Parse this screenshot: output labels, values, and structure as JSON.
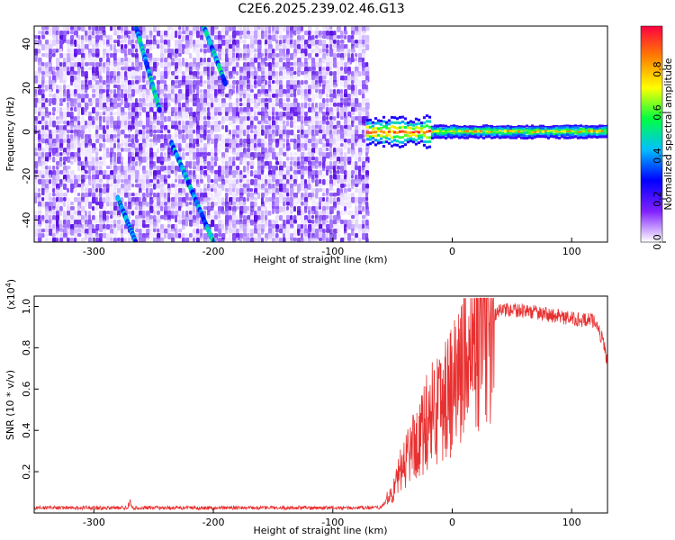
{
  "title": "C2E6.2025.239.02.46.G13",
  "chart_data": [
    {
      "type": "heatmap",
      "xlabel": "Height of straight line (km)",
      "ylabel": "Frequency (Hz)",
      "xlim": [
        -350,
        130
      ],
      "ylim": [
        -50,
        48
      ],
      "xticks": [
        -300,
        -200,
        -100,
        0,
        100
      ],
      "xtick_labels": [
        "-300",
        "-200",
        "-100",
        "0",
        "100"
      ],
      "yticks": [
        -40,
        -20,
        0,
        20,
        40
      ],
      "ytick_labels": [
        "-40",
        "-20",
        "0",
        "20",
        "40"
      ],
      "noise_region_x": [
        -350,
        -72
      ],
      "signal_region_x": [
        -72,
        130
      ],
      "signal_center_freq_hz": 0,
      "streaks": [
        {
          "x": [
            -265,
            -245
          ],
          "y": [
            48,
            10
          ]
        },
        {
          "x": [
            -235,
            -200
          ],
          "y": [
            -5,
            -50
          ]
        },
        {
          "x": [
            -208,
            -190
          ],
          "y": [
            48,
            22
          ]
        },
        {
          "x": [
            -280,
            -265
          ],
          "y": [
            -30,
            -50
          ]
        }
      ],
      "colorbar": {
        "label": "Normalized spectral amplitude",
        "range": [
          0,
          1
        ],
        "ticks": [
          0.0,
          0.2,
          0.4,
          0.6,
          0.8
        ],
        "tick_labels": [
          "0.0",
          "0.2",
          "0.4",
          "0.6",
          "0.8"
        ],
        "colors": [
          "#ffffff",
          "#8020ff",
          "#0000ff",
          "#00c0ff",
          "#00ff40",
          "#ffff00",
          "#ff8000",
          "#ff0040"
        ]
      },
      "grid": false
    },
    {
      "type": "line",
      "xlabel": "Height of straight line (km)",
      "ylabel": "SNR (10 * v/v)",
      "y_multiplier": "(x10",
      "y_multiplier_exp": "4",
      "y_multiplier_close": ")",
      "xlim": [
        -350,
        130
      ],
      "ylim": [
        0,
        1.05
      ],
      "xticks": [
        -300,
        -200,
        -100,
        0,
        100
      ],
      "xtick_labels": [
        "-300",
        "-200",
        "-100",
        "0",
        "100"
      ],
      "yticks": [
        0.2,
        0.4,
        0.6,
        0.8,
        1.0
      ],
      "ytick_labels": [
        "0.2",
        "0.4",
        "0.6",
        "0.8",
        "1.0"
      ],
      "series_color": "#e83030",
      "envelope": {
        "x": [
          -350,
          -60,
          -50,
          -40,
          -30,
          -20,
          -10,
          0,
          10,
          20,
          30,
          40,
          60,
          80,
          100,
          120,
          127,
          130
        ],
        "y": [
          0.025,
          0.025,
          0.1,
          0.25,
          0.35,
          0.45,
          0.55,
          0.6,
          0.75,
          0.85,
          0.92,
          0.98,
          0.98,
          0.96,
          0.94,
          0.93,
          0.82,
          0.72
        ]
      },
      "grid": false
    }
  ],
  "colors": {
    "frame": "#000000",
    "line": "#e83030"
  }
}
